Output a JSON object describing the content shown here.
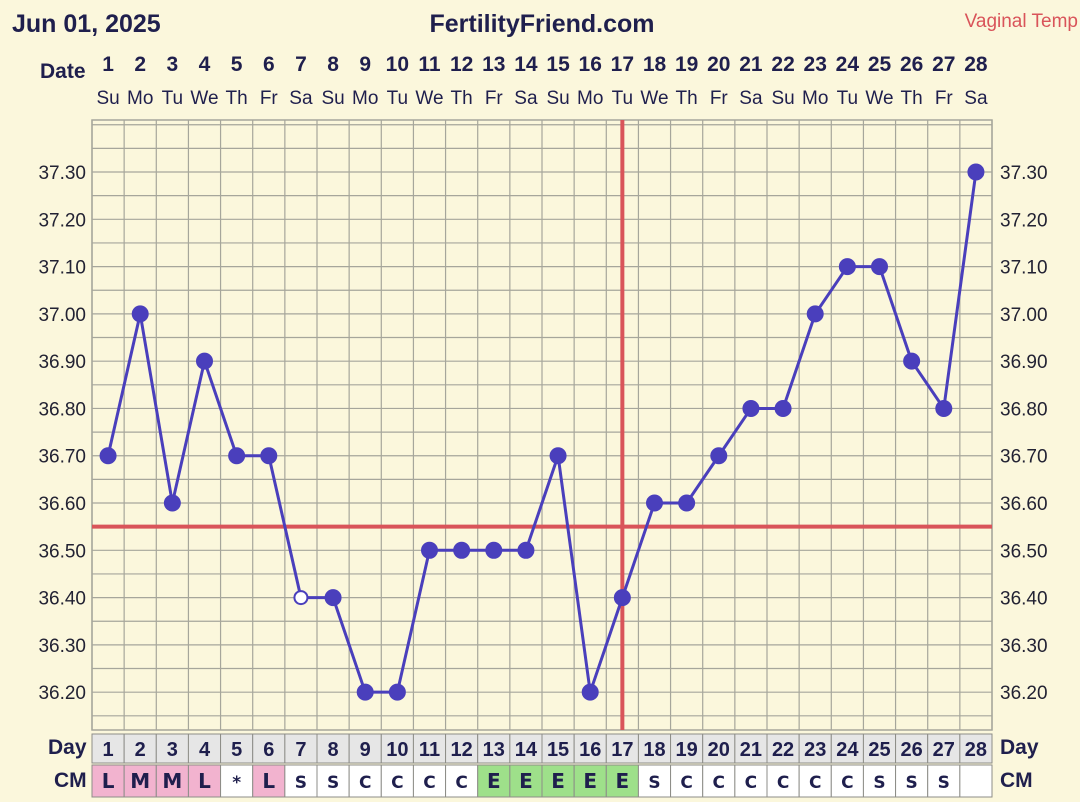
{
  "header": {
    "date": "Jun 01, 2025",
    "site": "FertilityFriend.com",
    "temp_type": "Vaginal Temp"
  },
  "labels": {
    "date_row": "Date",
    "day_row": "Day",
    "cm_row": "CM"
  },
  "colors": {
    "background": "#fbf7dc",
    "grid": "#a6a69b",
    "line": "#4a3fbc",
    "coverline": "#d9545a",
    "cm_menstrual": "#f2b3cf",
    "cm_egg_white": "#9ee08a",
    "cm_cell": "#ffffff",
    "day_cell": "#e6e6e6",
    "temp_type_text": "#d9545a"
  },
  "chart_data": {
    "type": "line",
    "x": [
      1,
      2,
      3,
      4,
      5,
      6,
      7,
      8,
      9,
      10,
      11,
      12,
      13,
      14,
      15,
      16,
      17,
      18,
      19,
      20,
      21,
      22,
      23,
      24,
      25,
      26,
      27,
      28
    ],
    "weekdays": [
      "Su",
      "Mo",
      "Tu",
      "We",
      "Th",
      "Fr",
      "Sa",
      "Su",
      "Mo",
      "Tu",
      "We",
      "Th",
      "Fr",
      "Sa",
      "Su",
      "Mo",
      "Tu",
      "We",
      "Th",
      "Fr",
      "Sa",
      "Su",
      "Mo",
      "Tu",
      "We",
      "Th",
      "Fr",
      "Sa"
    ],
    "series": [
      {
        "values": [
          36.7,
          37.0,
          36.6,
          36.9,
          36.7,
          36.7,
          36.4,
          36.4,
          36.2,
          36.2,
          36.5,
          36.5,
          36.5,
          36.5,
          36.7,
          36.2,
          36.4,
          36.6,
          36.6,
          36.7,
          36.8,
          36.8,
          37.0,
          37.1,
          37.1,
          36.9,
          36.8,
          37.3
        ],
        "open_markers": [
          7
        ]
      }
    ],
    "yticks": [
      "37.30",
      "37.20",
      "37.10",
      "37.00",
      "36.90",
      "36.80",
      "36.70",
      "36.60",
      "36.50",
      "36.40",
      "36.30",
      "36.20"
    ],
    "ylim": [
      36.12,
      37.41
    ],
    "coverline": 36.55,
    "ovulation_day": 17,
    "grid": true,
    "cm": [
      "L",
      "M",
      "M",
      "L",
      "*",
      "L",
      "S",
      "S",
      "C",
      "C",
      "C",
      "C",
      "E",
      "E",
      "E",
      "E",
      "E",
      "S",
      "C",
      "C",
      "C",
      "C",
      "C",
      "C",
      "S",
      "S",
      "S",
      ""
    ]
  }
}
